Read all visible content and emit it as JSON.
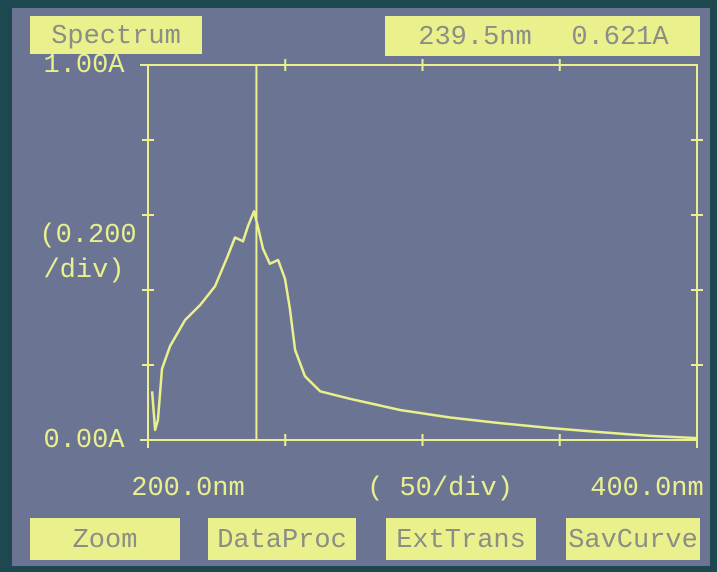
{
  "header": {
    "title": "Spectrum"
  },
  "chart_data": {
    "type": "line",
    "color": "#e9f08c",
    "x": [
      201.5,
      202.6,
      203.6,
      205.1,
      208,
      213.5,
      219,
      224.4,
      229,
      231.7,
      234.6,
      236.4,
      238.6,
      240,
      241.9,
      244.4,
      247.4,
      249.9,
      251.7,
      253.6,
      257.2,
      262.7,
      273.6,
      291.8,
      310,
      328.2,
      346.4,
      364.7,
      382.9,
      400
    ],
    "values": [
      0.13,
      0.027,
      0.053,
      0.19,
      0.25,
      0.32,
      0.36,
      0.41,
      0.49,
      0.54,
      0.53,
      0.57,
      0.61,
      0.57,
      0.51,
      0.47,
      0.48,
      0.43,
      0.35,
      0.24,
      0.17,
      0.13,
      0.11,
      0.08,
      0.06,
      0.045,
      0.032,
      0.021,
      0.011,
      0.005
    ],
    "xlim": [
      200,
      400
    ],
    "ylim": [
      0,
      1
    ],
    "xticks": [
      {
        "value": 200,
        "label": "200.0nm"
      },
      {
        "value": 400,
        "label": "400.0nm"
      }
    ],
    "yticks": [
      {
        "value": 0,
        "label": "0.00A"
      },
      {
        "value": 1,
        "label": "1.00A"
      }
    ],
    "minor_xticks": [
      250,
      300,
      350
    ],
    "minor_yticks": [
      0.2,
      0.4,
      0.6,
      0.8
    ],
    "xlabel": "(  50/div)",
    "ylabel": [
      "(0.200",
      "/div)"
    ],
    "cursor": {
      "x": {
        "value": 239.5,
        "label": "239.5nm"
      },
      "y": {
        "value": 0.621,
        "label": "0.621A"
      }
    }
  },
  "buttons": [
    "Zoom",
    "DataProc",
    "ExtTrans",
    "SavCurve"
  ]
}
